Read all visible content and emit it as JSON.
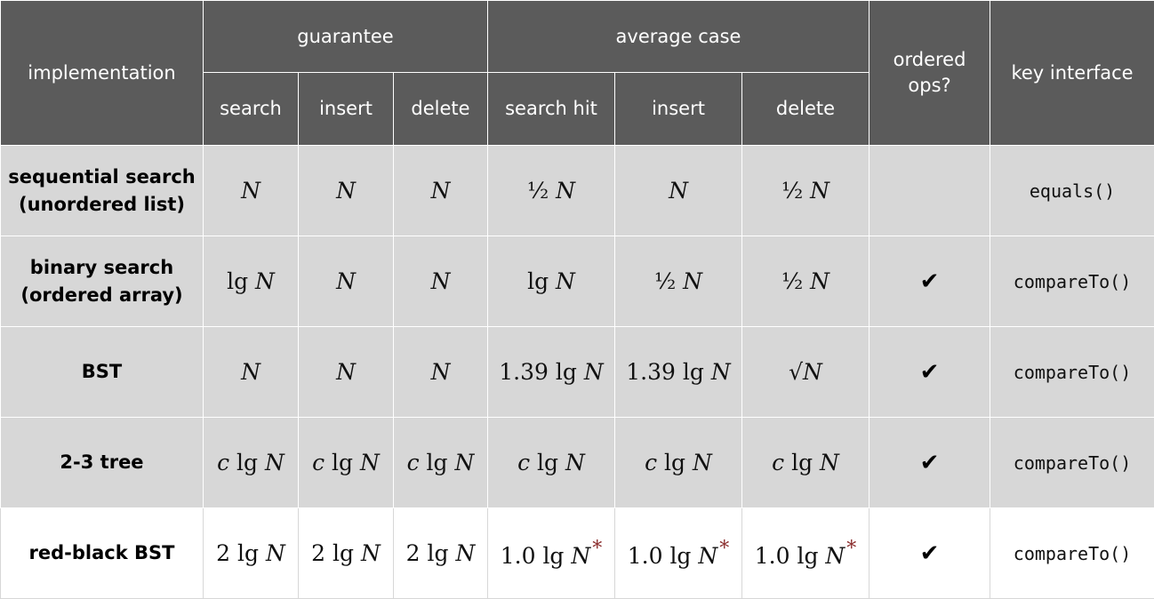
{
  "header": {
    "implementation": "implementation",
    "guarantee": "guarantee",
    "average_case": "average case",
    "ordered_ops": "ordered ops?",
    "key_interface": "key interface",
    "search": "search",
    "insert": "insert",
    "delete": "delete",
    "search_hit": "search hit",
    "avg_insert": "insert",
    "avg_delete": "delete"
  },
  "rows": [
    {
      "name_line1": "sequential search",
      "name_line2": "(unordered list)",
      "g_search": {
        "coef": "",
        "var": "N"
      },
      "g_insert": {
        "coef": "",
        "var": "N"
      },
      "g_delete": {
        "coef": "",
        "var": "N"
      },
      "a_search_hit": {
        "coef": "½ ",
        "var": "N"
      },
      "a_insert": {
        "coef": "",
        "var": "N"
      },
      "a_delete": {
        "coef": "½ ",
        "var": "N"
      },
      "ordered": "",
      "interface": "equals()"
    },
    {
      "name_line1": "binary search",
      "name_line2": "(ordered array)",
      "g_search": {
        "coef": "lg ",
        "var": "N"
      },
      "g_insert": {
        "coef": "",
        "var": "N"
      },
      "g_delete": {
        "coef": "",
        "var": "N"
      },
      "a_search_hit": {
        "coef": "lg ",
        "var": "N"
      },
      "a_insert": {
        "coef": "½ ",
        "var": "N"
      },
      "a_delete": {
        "coef": "½ ",
        "var": "N"
      },
      "ordered": "✔",
      "interface": "compareTo()"
    },
    {
      "name_line1": "BST",
      "name_line2": "",
      "g_search": {
        "coef": "",
        "var": "N"
      },
      "g_insert": {
        "coef": "",
        "var": "N"
      },
      "g_delete": {
        "coef": "",
        "var": "N"
      },
      "a_search_hit": {
        "coef": "1.39 lg ",
        "var": "N"
      },
      "a_insert": {
        "coef": "1.39 lg ",
        "var": "N"
      },
      "a_delete": {
        "coef": "√",
        "var": "N"
      },
      "ordered": "✔",
      "interface": "compareTo()"
    },
    {
      "name_line1": "2-3 tree",
      "name_line2": "",
      "g_search": {
        "cvar": "c",
        "coef": " lg ",
        "var": "N"
      },
      "g_insert": {
        "cvar": "c",
        "coef": " lg ",
        "var": "N"
      },
      "g_delete": {
        "cvar": "c",
        "coef": " lg ",
        "var": "N"
      },
      "a_search_hit": {
        "cvar": "c",
        "coef": " lg ",
        "var": "N"
      },
      "a_insert": {
        "cvar": "c",
        "coef": " lg ",
        "var": "N"
      },
      "a_delete": {
        "cvar": "c",
        "coef": " lg ",
        "var": "N"
      },
      "ordered": "✔",
      "interface": "compareTo()"
    },
    {
      "name_line1": "red-black BST",
      "name_line2": "",
      "g_search": {
        "coef": "2 lg ",
        "var": "N"
      },
      "g_insert": {
        "coef": "2 lg ",
        "var": "N"
      },
      "g_delete": {
        "coef": "2 lg ",
        "var": "N"
      },
      "a_search_hit": {
        "coef": "1.0 lg ",
        "var": "N",
        "mark": "*"
      },
      "a_insert": {
        "coef": "1.0 lg ",
        "var": "N",
        "mark": "*"
      },
      "a_delete": {
        "coef": "1.0 lg ",
        "var": "N",
        "mark": "*"
      },
      "ordered": "✔",
      "interface": "compareTo()"
    }
  ]
}
